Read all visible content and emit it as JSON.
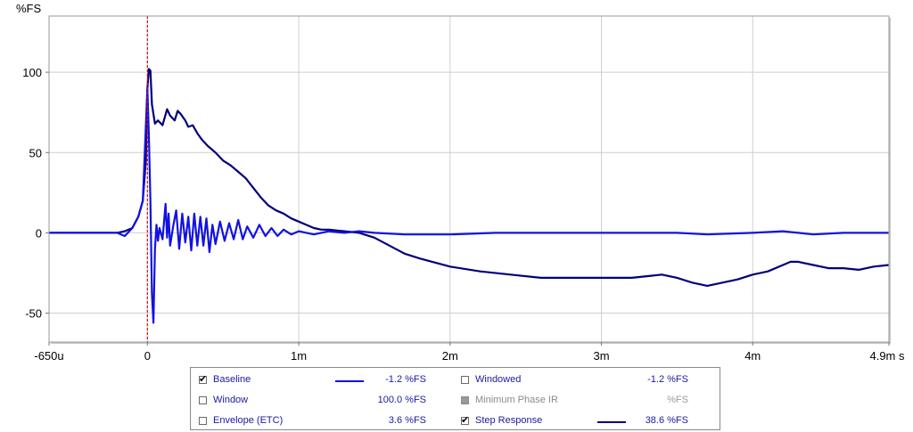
{
  "chart_data": {
    "type": "line",
    "ylabel": "%FS",
    "xlim": [
      -0.65,
      4.9
    ],
    "ylim": [
      -68,
      135
    ],
    "x_ticks": [
      {
        "value": -0.65,
        "label": "-650u"
      },
      {
        "value": 0,
        "label": "0"
      },
      {
        "value": 1,
        "label": "1m"
      },
      {
        "value": 2,
        "label": "2m"
      },
      {
        "value": 3,
        "label": "3m"
      },
      {
        "value": 4,
        "label": "4m"
      },
      {
        "value": 4.9,
        "label": "4.9m s"
      }
    ],
    "y_ticks": [
      {
        "value": 100,
        "label": "100"
      },
      {
        "value": 50,
        "label": "50"
      },
      {
        "value": 0,
        "label": "0"
      },
      {
        "value": -50,
        "label": "-50"
      }
    ],
    "grid": true,
    "cursor_x": 0,
    "series": [
      {
        "name": "Step Response",
        "color": "#00007a",
        "x": [
          -0.65,
          -0.2,
          -0.15,
          -0.1,
          -0.06,
          -0.03,
          -0.01,
          0.0,
          0.01,
          0.02,
          0.03,
          0.05,
          0.07,
          0.1,
          0.13,
          0.15,
          0.18,
          0.2,
          0.22,
          0.25,
          0.27,
          0.3,
          0.33,
          0.36,
          0.4,
          0.45,
          0.5,
          0.55,
          0.6,
          0.65,
          0.7,
          0.75,
          0.8,
          0.85,
          0.9,
          0.95,
          1.0,
          1.05,
          1.1,
          1.15,
          1.2,
          1.3,
          1.4,
          1.5,
          1.6,
          1.7,
          1.8,
          2.0,
          2.2,
          2.4,
          2.6,
          2.8,
          3.0,
          3.2,
          3.3,
          3.4,
          3.5,
          3.6,
          3.7,
          3.8,
          3.9,
          4.0,
          4.1,
          4.2,
          4.25,
          4.3,
          4.4,
          4.5,
          4.6,
          4.7,
          4.8,
          4.9
        ],
        "y": [
          0,
          0,
          1,
          3,
          10,
          20,
          45,
          90,
          102,
          101,
          80,
          68,
          70,
          67,
          77,
          73,
          70,
          76,
          74,
          70,
          66,
          67,
          62,
          58,
          54,
          50,
          45,
          42,
          38,
          34,
          28,
          22,
          17,
          14,
          12,
          9,
          7,
          5,
          3,
          2,
          2,
          1,
          0,
          -3,
          -8,
          -13,
          -16,
          -21,
          -24,
          -26,
          -28,
          -28,
          -28,
          -28,
          -27,
          -26,
          -28,
          -31,
          -33,
          -31,
          -29,
          -26,
          -24,
          -20,
          -18,
          -18,
          -20,
          -22,
          -22,
          -23,
          -21,
          -20
        ]
      },
      {
        "name": "Baseline",
        "color": "#1212e0",
        "x": [
          -0.65,
          -0.2,
          -0.15,
          -0.1,
          -0.06,
          -0.03,
          0.0,
          0.01,
          0.02,
          0.03,
          0.04,
          0.05,
          0.06,
          0.07,
          0.08,
          0.1,
          0.12,
          0.13,
          0.14,
          0.15,
          0.17,
          0.19,
          0.21,
          0.23,
          0.25,
          0.27,
          0.29,
          0.31,
          0.33,
          0.35,
          0.37,
          0.39,
          0.41,
          0.43,
          0.45,
          0.48,
          0.51,
          0.54,
          0.57,
          0.6,
          0.63,
          0.66,
          0.7,
          0.74,
          0.78,
          0.82,
          0.86,
          0.9,
          0.95,
          1.0,
          1.1,
          1.2,
          1.3,
          1.4,
          1.5,
          1.7,
          2.0,
          2.3,
          2.6,
          3.0,
          3.3,
          3.5,
          3.7,
          4.0,
          4.2,
          4.3,
          4.4,
          4.6,
          4.9
        ],
        "y": [
          0,
          0,
          -2,
          3,
          10,
          20,
          90,
          60,
          20,
          -38,
          -56,
          -10,
          5,
          -5,
          3,
          -4,
          18,
          -3,
          12,
          -8,
          4,
          14,
          -10,
          12,
          -6,
          10,
          -11,
          12,
          -8,
          10,
          -8,
          9,
          -12,
          5,
          -7,
          7,
          -5,
          6,
          -4,
          8,
          -4,
          4,
          -3,
          5,
          -2,
          3,
          -2,
          2,
          -1,
          1,
          -1,
          1,
          0,
          1,
          0,
          -1,
          -1,
          0,
          0,
          0,
          0,
          0,
          -1,
          0,
          1,
          0,
          -1,
          0,
          0
        ]
      }
    ]
  },
  "legend": {
    "rows": [
      [
        {
          "label": "Baseline",
          "checked": true,
          "disabled": false,
          "value": "-1.2 %FS",
          "swatch": "#1212e0"
        },
        {
          "label": "Windowed",
          "checked": false,
          "disabled": false,
          "value": "-1.2 %FS",
          "swatch": ""
        }
      ],
      [
        {
          "label": "Window",
          "checked": false,
          "disabled": false,
          "value": "100.0 %FS",
          "swatch": ""
        },
        {
          "label": "Minimum Phase IR",
          "checked": false,
          "disabled": true,
          "value": "%FS",
          "swatch": ""
        }
      ],
      [
        {
          "label": "Envelope (ETC)",
          "checked": false,
          "disabled": false,
          "value": "3.6 %FS",
          "swatch": ""
        },
        {
          "label": "Step Response",
          "checked": true,
          "disabled": false,
          "value": "38.6 %FS",
          "swatch": "#00007a"
        }
      ]
    ]
  }
}
